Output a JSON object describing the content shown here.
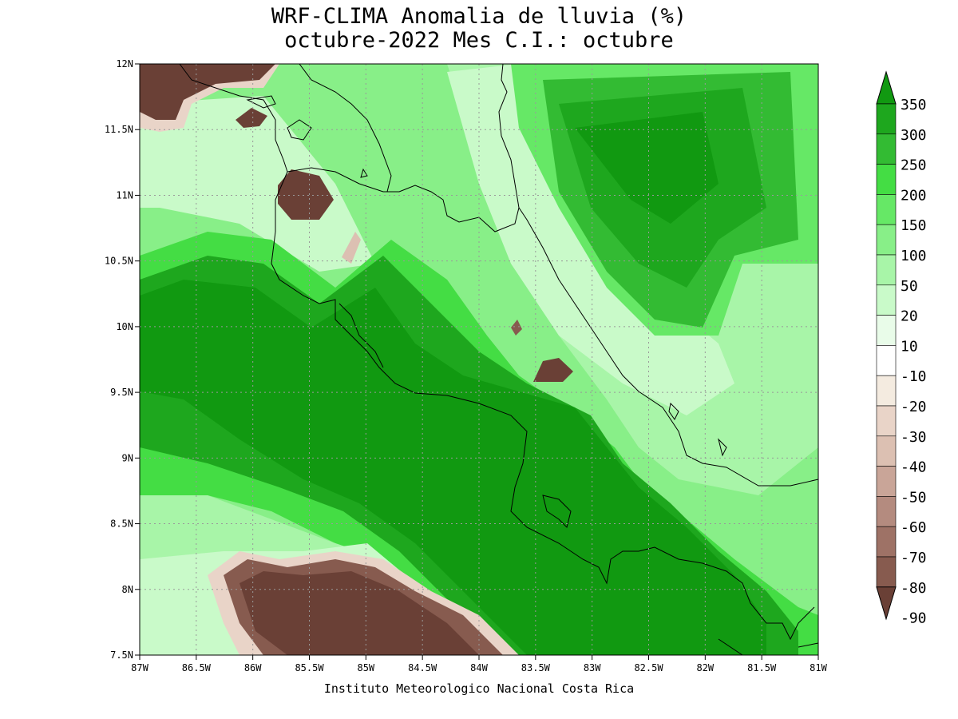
{
  "title": {
    "line1": "WRF-CLIMA Anomalia de lluvia (%)",
    "line2": "octubre-2022 Mes C.I.: octubre"
  },
  "axes": {
    "lon_labels": [
      "87W",
      "86.5W",
      "86W",
      "85.5W",
      "85W",
      "84.5W",
      "84W",
      "83.5W",
      "83W",
      "82.5W",
      "82W",
      "81.5W",
      "81W"
    ],
    "lat_labels": [
      "12N",
      "11.5N",
      "11N",
      "10.5N",
      "10N",
      "9.5N",
      "9N",
      "8.5N",
      "8N",
      "7.5N"
    ],
    "lon_range": [
      -87,
      -81
    ],
    "lat_range": [
      7.5,
      12
    ]
  },
  "colorbar": {
    "labels": [
      "350",
      "300",
      "250",
      "200",
      "150",
      "100",
      "50",
      "20",
      "10",
      "-10",
      "-20",
      "-30",
      "-40",
      "-50",
      "-60",
      "-70",
      "-80",
      "-90"
    ],
    "colors": [
      "#119911",
      "#1ea71e",
      "#33bb33",
      "#44dd44",
      "#66e866",
      "#88ef88",
      "#a8f5a8",
      "#c9fac9",
      "#e9fce9",
      "#ffffff",
      "#f4ebe0",
      "#e9d4c8",
      "#dcc0b2",
      "#c9a598",
      "#b48b7f",
      "#9e7266",
      "#875b4f",
      "#6a4036"
    ]
  },
  "footer": "Instituto Meteorologico Nacional Costa Rica"
}
